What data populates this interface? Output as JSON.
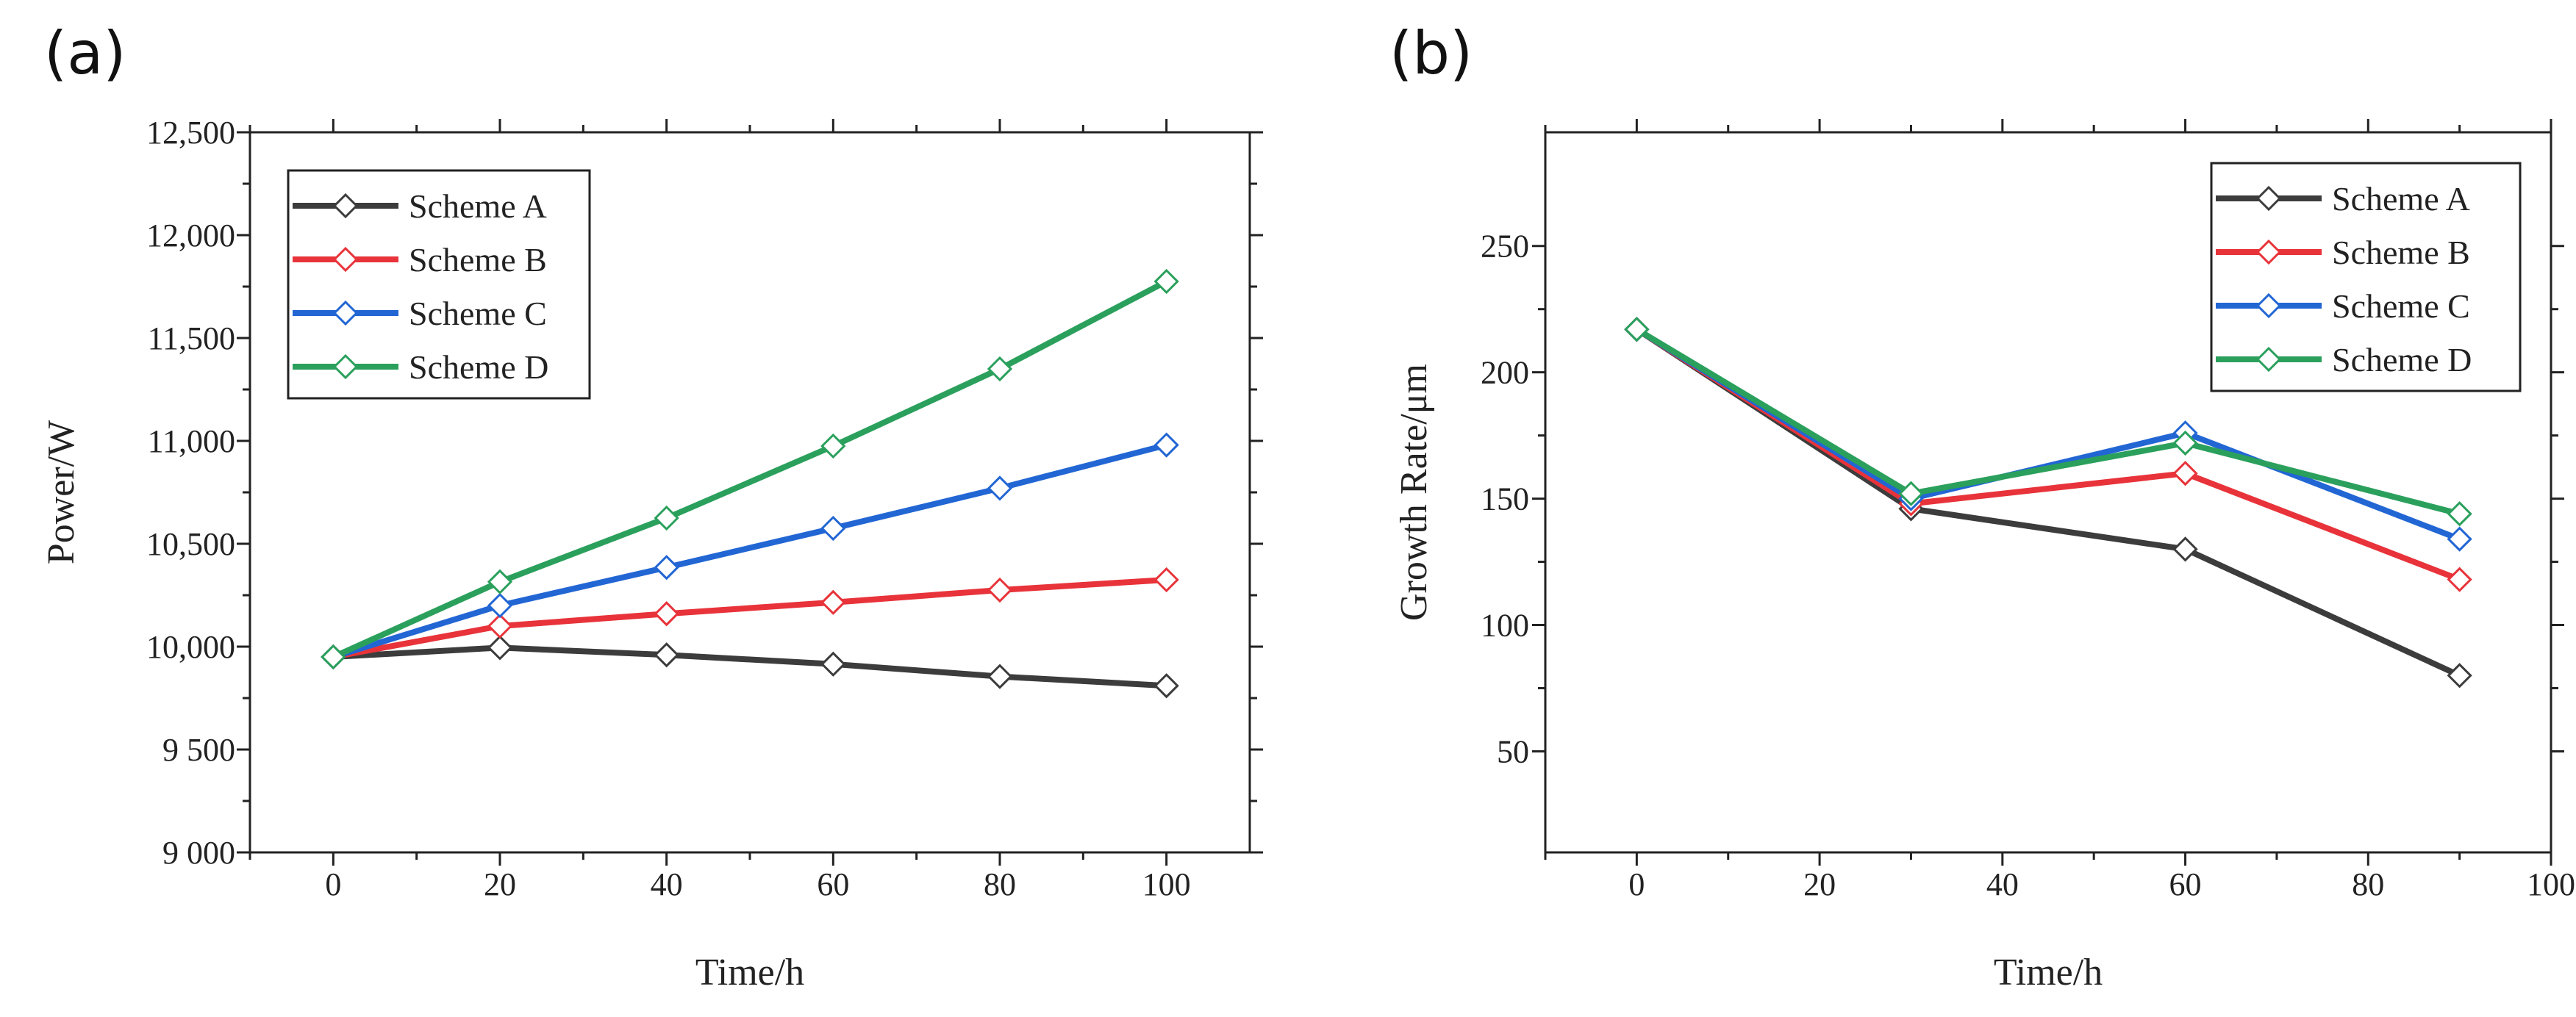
{
  "chart_data": [
    {
      "panel_label": "(a)",
      "type": "line",
      "xlabel": "Time/h",
      "ylabel": "Power/W",
      "xlim": [
        -10,
        110
      ],
      "ylim": [
        9000,
        12500
      ],
      "xticks": [
        0,
        20,
        40,
        60,
        80,
        100
      ],
      "xtick_labels": [
        "0",
        "20",
        "40",
        "60",
        "80",
        "100"
      ],
      "yticks": [
        9000,
        9500,
        10000,
        10500,
        11000,
        11500,
        12000,
        12500
      ],
      "ytick_labels": [
        "9 000",
        "9 500",
        "10,000",
        "10,500",
        "11,000",
        "11,500",
        "12,000",
        "12,500"
      ],
      "legend_position": "top-left",
      "x": [
        0,
        20,
        40,
        60,
        80,
        100
      ],
      "series": [
        {
          "name": "Scheme A",
          "color": "#3c3c3c",
          "values": [
            9950,
            9995,
            9960,
            9915,
            9855,
            9810
          ]
        },
        {
          "name": "Scheme B",
          "color": "#e8333a",
          "values": [
            9950,
            10100,
            10160,
            10215,
            10275,
            10325
          ]
        },
        {
          "name": "Scheme C",
          "color": "#2266d4",
          "values": [
            9950,
            10200,
            10385,
            10575,
            10770,
            10980
          ]
        },
        {
          "name": "Scheme D",
          "color": "#2aa05c",
          "values": [
            9950,
            10315,
            10625,
            10975,
            11350,
            11775
          ]
        }
      ]
    },
    {
      "panel_label": "(b)",
      "type": "line",
      "xlabel": "Time/h",
      "ylabel": "Growth Rate/μm",
      "xlim": [
        -10,
        100
      ],
      "ylim": [
        10,
        295
      ],
      "xticks": [
        0,
        20,
        40,
        60,
        80,
        100
      ],
      "xtick_labels": [
        "0",
        "20",
        "40",
        "60",
        "80",
        "100"
      ],
      "yticks": [
        50,
        100,
        150,
        200,
        250
      ],
      "ytick_labels": [
        "50",
        "100",
        "150",
        "200",
        "250"
      ],
      "legend_position": "top-right",
      "x": [
        0,
        30,
        60,
        90
      ],
      "series": [
        {
          "name": "Scheme A",
          "color": "#3c3c3c",
          "values": [
            217,
            146,
            130,
            80
          ]
        },
        {
          "name": "Scheme B",
          "color": "#e8333a",
          "values": [
            217,
            148,
            160,
            118
          ]
        },
        {
          "name": "Scheme C",
          "color": "#2266d4",
          "values": [
            217,
            150,
            176,
            134
          ]
        },
        {
          "name": "Scheme D",
          "color": "#2aa05c",
          "values": [
            217,
            152,
            172,
            144
          ]
        }
      ]
    }
  ]
}
